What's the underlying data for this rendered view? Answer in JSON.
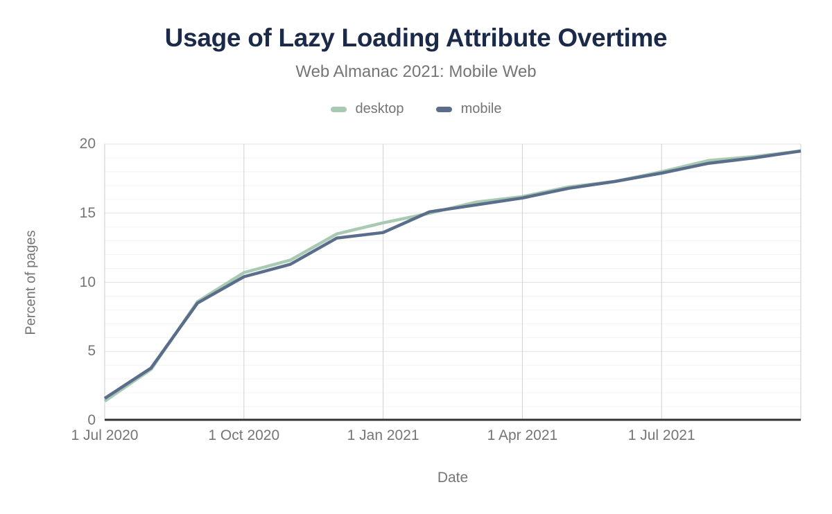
{
  "title": "Usage of Lazy Loading Attribute Overtime",
  "subtitle": "Web Almanac 2021: Mobile Web",
  "legend": [
    {
      "label": "desktop",
      "color": "#a8cab2"
    },
    {
      "label": "mobile",
      "color": "#5a6e8c"
    }
  ],
  "colors": {
    "title": "#1b2a49",
    "text_gray": "#757575",
    "axis_line": "#333333",
    "gridline_minor": "#f3f3f3",
    "gridline_major": "#e2e2e2",
    "gridline_vertical": "#cfcfcf"
  },
  "chart_data": {
    "type": "line",
    "title": "Usage of Lazy Loading Attribute Overtime",
    "subtitle": "Web Almanac 2021: Mobile Web",
    "xlabel": "Date",
    "ylabel": "Percent of pages",
    "ylim": [
      0,
      20
    ],
    "y_ticks": [
      "0",
      "5",
      "10",
      "15",
      "20"
    ],
    "y_tick_values": [
      0,
      5,
      10,
      15,
      20
    ],
    "grid": "horizontal minor every 1%, major every 5%; vertical at quarterly date ticks",
    "legend_position": "top",
    "x": [
      "1 Jul 2020",
      "1 Aug 2020",
      "1 Sep 2020",
      "1 Oct 2020",
      "1 Nov 2020",
      "1 Dec 2020",
      "1 Jan 2021",
      "1 Feb 2021",
      "1 Mar 2021",
      "1 Apr 2021",
      "1 May 2021",
      "1 Jun 2021",
      "1 Jul 2021",
      "1 Aug 2021",
      "1 Sep 2021",
      "1 Oct 2021"
    ],
    "x_ticks": [
      {
        "index": 0,
        "label": "1 Jul 2020"
      },
      {
        "index": 3,
        "label": "1 Oct 2020"
      },
      {
        "index": 6,
        "label": "1 Jan 2021"
      },
      {
        "index": 9,
        "label": "1 Apr 2021"
      },
      {
        "index": 12,
        "label": "1 Jul 2021"
      }
    ],
    "series": [
      {
        "name": "desktop",
        "color": "#a8cab2",
        "values": [
          1.4,
          3.7,
          8.6,
          10.7,
          11.6,
          13.5,
          14.3,
          15.0,
          15.8,
          16.2,
          16.9,
          17.3,
          18.0,
          18.8,
          19.1,
          19.5
        ]
      },
      {
        "name": "mobile",
        "color": "#5a6e8c",
        "values": [
          1.6,
          3.8,
          8.5,
          10.4,
          11.3,
          13.2,
          13.6,
          15.1,
          15.6,
          16.1,
          16.8,
          17.3,
          17.9,
          18.6,
          19.0,
          19.5
        ]
      }
    ]
  }
}
